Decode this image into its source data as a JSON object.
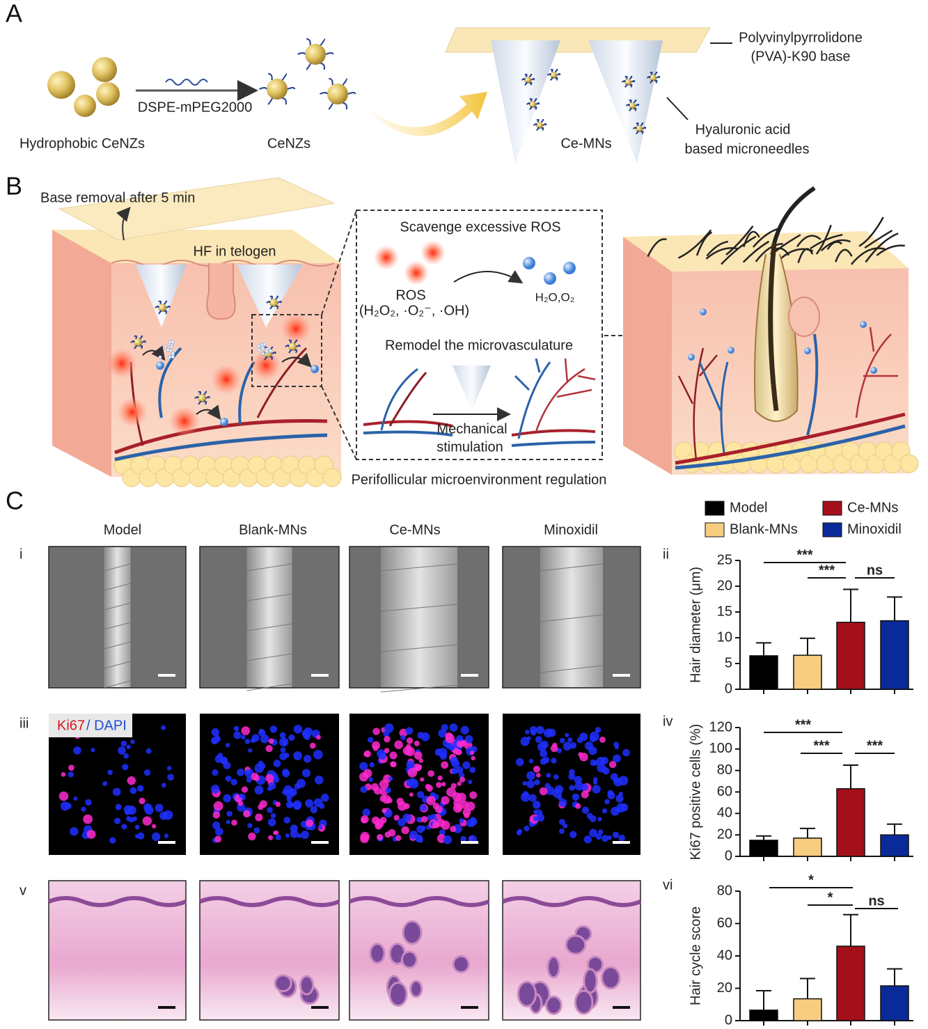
{
  "panel_a": {
    "label": "A",
    "hydrophobic": "Hydrophobic CeNZs",
    "linker": "DSPE-mPEG2000",
    "cenzs": "CeNZs",
    "ce_mns": "Ce-MNs",
    "base": [
      "Polyvinylpyrrolidone",
      "(PVA)-K90 base"
    ],
    "needles": [
      "Hyaluronic acid",
      "based microneedles"
    ]
  },
  "panel_b": {
    "label": "B",
    "base_removal": "Base removal after 5 min",
    "hf": "HF in telogen",
    "scavenge": "Scavenge excessive ROS",
    "ros": "ROS",
    "ros_species": "(H₂O₂, ·O₂⁻, ·OH)",
    "products": "H₂O,O₂",
    "remodel": "Remodel the microvasculature",
    "stimulation": [
      "Mechanical",
      "stimulation"
    ],
    "caption": "Perifollicular microenvironment regulation"
  },
  "panel_c": {
    "label": "C",
    "columns": [
      "Model",
      "Blank-MNs",
      "Ce-MNs",
      "Minoxidil"
    ],
    "rows": [
      "i",
      "iii",
      "v"
    ],
    "stain": [
      "Ki67",
      "/ DAPI"
    ],
    "legend": [
      {
        "name": "Model",
        "color": "#000000"
      },
      {
        "name": "Blank-MNs",
        "color": "#f7cd82"
      },
      {
        "name": "Ce-MNs",
        "color": "#a3101a"
      },
      {
        "name": "Minoxidil",
        "color": "#0b2a99"
      }
    ]
  },
  "chart_data": [
    {
      "type": "bar",
      "label": "ii",
      "y_label": "Hair diameter (μm)",
      "categories": [
        null,
        null,
        null,
        null
      ],
      "values": [
        6.5,
        6.6,
        13,
        13.3
      ],
      "errors": [
        2.5,
        3.3,
        6.4,
        4.6
      ],
      "ylim": [
        0,
        25
      ],
      "yticks": [
        0,
        5,
        10,
        15,
        20,
        25
      ],
      "significance": [
        "***",
        "***",
        "ns"
      ]
    },
    {
      "type": "bar",
      "label": "iv",
      "y_label": "Ki67 positive cells (%)",
      "categories": [
        null,
        null,
        null,
        null
      ],
      "values": [
        15,
        17,
        63,
        20
      ],
      "errors": [
        4,
        9,
        22,
        10
      ],
      "ylim": [
        0,
        120
      ],
      "yticks": [
        0,
        20,
        40,
        60,
        80,
        100,
        120
      ],
      "significance": [
        "***",
        "***",
        "***"
      ]
    },
    {
      "type": "bar",
      "label": "vi",
      "y_label": "Hair cycle score",
      "categories": [
        null,
        null,
        null,
        null
      ],
      "values": [
        6.5,
        13.5,
        46,
        21.5
      ],
      "errors": [
        12,
        12.5,
        19.5,
        10.5
      ],
      "ylim": [
        0,
        80
      ],
      "yticks": [
        0,
        20,
        40,
        60,
        80
      ],
      "significance": [
        "*",
        "*",
        "ns"
      ]
    }
  ]
}
